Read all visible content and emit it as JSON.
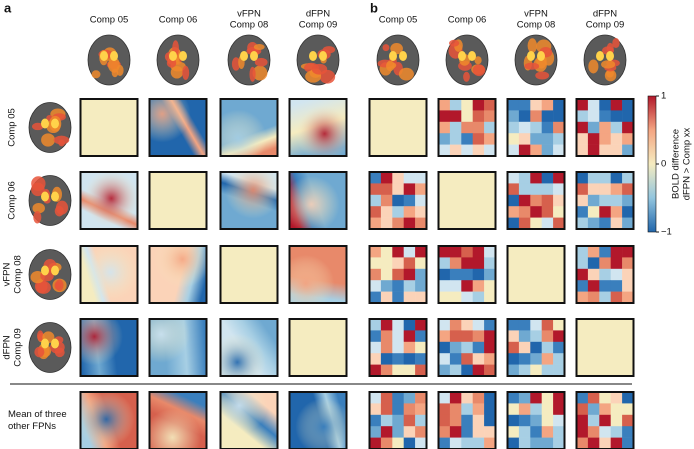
{
  "panels": {
    "a": "a",
    "b": "b"
  },
  "columns": [
    [
      "Comp 05"
    ],
    [
      "Comp 06"
    ],
    [
      "vFPN",
      "Comp 08"
    ],
    [
      "dFPN",
      "Comp 09"
    ]
  ],
  "rows": [
    [
      "Comp 05"
    ],
    [
      "Comp 06"
    ],
    [
      "vFPN",
      "Comp 08"
    ],
    [
      "dFPN",
      "Comp 09"
    ],
    [
      "Mean of three",
      "other FPNs"
    ]
  ],
  "colorbar": {
    "ticks": [
      "1",
      "0",
      "−1"
    ],
    "label": [
      "BOLD difference",
      "dFPN > Comp xx"
    ]
  }
}
